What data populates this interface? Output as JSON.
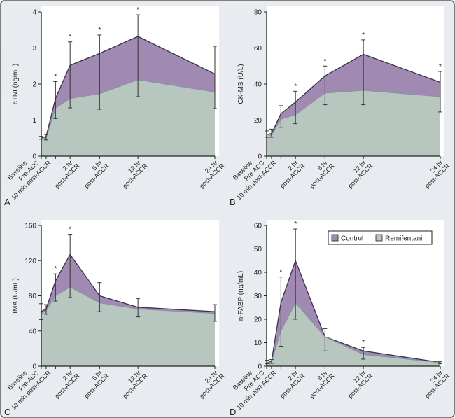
{
  "colors": {
    "control_fill": "#a08ab2",
    "control_line": "#3e2b58",
    "remi_fill": "#b7c7c0",
    "remi_line": "#7d9891",
    "background": "#e8ecf0",
    "plot": "#ffffff",
    "error_bar": "#333333"
  },
  "legend": {
    "placement": "top-right of panel D",
    "items": [
      {
        "label": "Control",
        "key": "control"
      },
      {
        "label": "Remifentanil",
        "key": "remi"
      }
    ]
  },
  "chart_data": [
    {
      "type": "area",
      "panel": "A",
      "ylabel": "cTNI (ng/mL)",
      "ylim": [
        0,
        4
      ],
      "yticks": [
        0,
        1,
        2,
        3,
        4
      ],
      "categories": [
        [
          "Baseline"
        ],
        [
          "Pre-ACC"
        ],
        [
          "10 min post-ACCR"
        ],
        [
          "2 hr",
          "post-ACCR"
        ],
        [
          "6 hr",
          "post-ACCR"
        ],
        [
          "12 hr",
          "post-ACCR"
        ],
        [
          "24 hr",
          "post-ACCR"
        ]
      ],
      "series": [
        {
          "name": "Control",
          "values": [
            0.5,
            0.55,
            1.6,
            2.52,
            2.85,
            3.32,
            2.28
          ]
        },
        {
          "name": "Remifentanil",
          "values": [
            0.5,
            0.5,
            1.33,
            1.6,
            1.73,
            2.12,
            1.78
          ]
        }
      ],
      "error_bars": [
        [
          0.47,
          0.55
        ],
        [
          0.45,
          0.6
        ],
        [
          1.04,
          2.07
        ],
        [
          1.34,
          3.17
        ],
        [
          1.3,
          3.36
        ],
        [
          1.65,
          3.92
        ],
        [
          1.32,
          3.05
        ]
      ],
      "significant": [
        false,
        false,
        true,
        true,
        true,
        true,
        false
      ]
    },
    {
      "type": "area",
      "panel": "B",
      "ylabel": "CK-MB (U/L)",
      "ylim": [
        0,
        80
      ],
      "yticks": [
        0,
        20,
        40,
        60,
        80
      ],
      "categories": [
        [
          "Baseline"
        ],
        [
          "Pre-ACC"
        ],
        [
          "10 min post-ACCR"
        ],
        [
          "2 hr",
          "post-ACCR"
        ],
        [
          "6 hr",
          "post-ACCR"
        ],
        [
          "12 hr",
          "post-ACCR"
        ],
        [
          "24 hr",
          "post-ACCR"
        ]
      ],
      "series": [
        {
          "name": "Control",
          "values": [
            12,
            12.5,
            23.5,
            30,
            44.5,
            56.5,
            41
          ]
        },
        {
          "name": "Remifentanil",
          "values": [
            12,
            11.5,
            20.5,
            23,
            35,
            36.5,
            33
          ]
        }
      ],
      "error_bars": [
        [
          10.5,
          14
        ],
        [
          10.5,
          15
        ],
        [
          16,
          28
        ],
        [
          18,
          36
        ],
        [
          28.5,
          50
        ],
        [
          28.5,
          64.5
        ],
        [
          24.5,
          47
        ]
      ],
      "significant": [
        false,
        false,
        false,
        true,
        true,
        true,
        true
      ]
    },
    {
      "type": "area",
      "panel": "C",
      "ylabel": "IMA (U/mL)",
      "ylim": [
        0,
        160
      ],
      "yticks": [
        0,
        40,
        80,
        120,
        160
      ],
      "categories": [
        [
          "Baseline"
        ],
        [
          "Pre-ACC"
        ],
        [
          "10 min post-ACCR"
        ],
        [
          "2 hr",
          "post-ACCR"
        ],
        [
          "6 hr",
          "post-ACCR"
        ],
        [
          "12 hr",
          "post-ACCR"
        ],
        [
          "24 hr",
          "post-ACCR"
        ]
      ],
      "series": [
        {
          "name": "Control",
          "values": [
            62,
            65,
            97,
            127,
            80,
            67,
            62
          ]
        },
        {
          "name": "Remifentanil",
          "values": [
            60,
            63,
            80,
            90,
            72,
            65,
            60
          ]
        }
      ],
      "error_bars": [
        [
          53,
          71
        ],
        [
          59,
          70
        ],
        [
          74,
          105
        ],
        [
          78,
          150
        ],
        [
          62,
          95
        ],
        [
          56,
          77
        ],
        [
          51,
          70
        ]
      ],
      "significant": [
        false,
        false,
        true,
        true,
        false,
        false,
        false
      ]
    },
    {
      "type": "area",
      "panel": "D",
      "ylabel": "n-FABP (ng/mL)",
      "ylim": [
        0,
        60
      ],
      "yticks": [
        0,
        10,
        20,
        30,
        40,
        50,
        60
      ],
      "categories": [
        [
          "Baseline"
        ],
        [
          "Pre-ACC"
        ],
        [
          "10 min post-ACCR"
        ],
        [
          "2 hr",
          "post-ACCR"
        ],
        [
          "6 hr",
          "post-ACCR"
        ],
        [
          "12 hr",
          "post-ACCR"
        ],
        [
          "24 hr",
          "post-ACCR"
        ]
      ],
      "series": [
        {
          "name": "Control",
          "values": [
            1.5,
            2,
            27,
            45,
            12.5,
            6.5,
            1.6
          ]
        },
        {
          "name": "Remifentanil",
          "values": [
            1.5,
            1.8,
            15,
            27,
            12.5,
            5,
            1.5
          ]
        }
      ],
      "error_bars": [
        [
          1,
          2.5
        ],
        [
          1.2,
          2.8
        ],
        [
          8.5,
          38
        ],
        [
          20,
          58.5
        ],
        [
          6.5,
          16
        ],
        [
          3,
          8
        ],
        [
          1,
          2
        ]
      ],
      "significant": [
        false,
        false,
        true,
        true,
        false,
        true,
        false
      ],
      "legend": true
    }
  ],
  "significance_marker": "*"
}
